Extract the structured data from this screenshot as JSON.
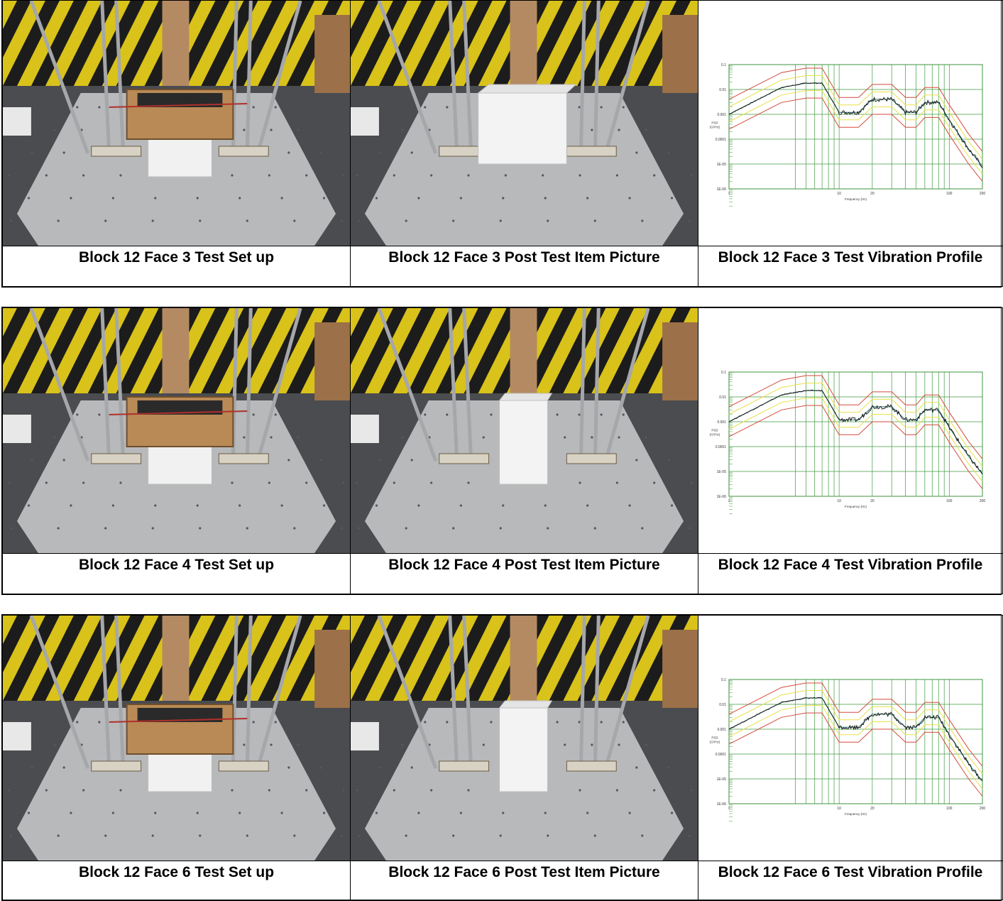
{
  "rows": [
    {
      "setup_caption": "Block 12 Face 3 Test Set up",
      "post_caption": "Block 12 Face 3 Post Test Item Picture",
      "profile_caption": "Block 12 Face 3 Test Vibration Profile",
      "post_box_variant": "wide"
    },
    {
      "setup_caption": "Block 12 Face 4 Test Set up",
      "post_caption": "Block 12 Face 4 Post Test Item Picture",
      "profile_caption": "Block 12 Face 4 Test Vibration Profile",
      "post_box_variant": "tall"
    },
    {
      "setup_caption": "Block 12 Face 6 Test Set up",
      "post_caption": "Block 12 Face 6 Post Test Item Picture",
      "profile_caption": "Block 12 Face 6 Test Vibration Profile",
      "post_box_variant": "tall"
    }
  ],
  "chart_text": {
    "y_tick_labels": [
      "0.1",
      "0.01",
      "0.001",
      "0.0001",
      "1E-05",
      "1E-06"
    ],
    "y_axis_label_line1": "PSD",
    "y_axis_label_line2": "(G²/Hz)",
    "x_tick_labels": [
      "1",
      "10",
      "20",
      "100",
      "200"
    ],
    "x_axis_label": "Frequency (Hz)"
  },
  "chart_data": [
    {
      "type": "line",
      "xscale": "log",
      "yscale": "log",
      "xlim": [
        1,
        200
      ],
      "ylim": [
        1e-06,
        0.1
      ],
      "xlabel": "Frequency (Hz)",
      "ylabel": "PSD (G²/Hz)",
      "grid": true,
      "x": [
        1,
        3,
        5,
        7,
        10,
        15,
        20,
        30,
        40,
        50,
        60,
        70,
        80,
        100,
        150,
        200
      ],
      "series": [
        {
          "values": [
            0.001,
            0.012,
            0.018,
            0.018,
            0.0012,
            0.0012,
            0.004,
            0.004,
            0.0012,
            0.0012,
            0.003,
            0.003,
            0.003,
            0.0006,
            4e-05,
            8e-06
          ]
        }
      ]
    },
    {
      "type": "line",
      "xscale": "log",
      "yscale": "log",
      "xlim": [
        1,
        200
      ],
      "ylim": [
        1e-06,
        0.1
      ],
      "xlabel": "Frequency (Hz)",
      "ylabel": "PSD (G²/Hz)",
      "grid": true,
      "x": [
        1,
        3,
        5,
        7,
        10,
        15,
        20,
        30,
        40,
        50,
        60,
        70,
        80,
        100,
        150,
        200
      ],
      "series": [
        {
          "values": [
            0.001,
            0.012,
            0.018,
            0.018,
            0.0012,
            0.0012,
            0.004,
            0.004,
            0.0012,
            0.0012,
            0.003,
            0.003,
            0.003,
            0.0006,
            4e-05,
            8e-06
          ]
        }
      ]
    },
    {
      "type": "line",
      "xscale": "log",
      "yscale": "log",
      "xlim": [
        1,
        200
      ],
      "ylim": [
        1e-06,
        0.1
      ],
      "xlabel": "Frequency (Hz)",
      "ylabel": "PSD (G²/Hz)",
      "grid": true,
      "x": [
        1,
        3,
        5,
        7,
        10,
        15,
        20,
        30,
        40,
        50,
        60,
        70,
        80,
        100,
        150,
        200
      ],
      "series": [
        {
          "values": [
            0.001,
            0.012,
            0.018,
            0.018,
            0.0012,
            0.0012,
            0.004,
            0.004,
            0.0012,
            0.0012,
            0.003,
            0.003,
            0.003,
            0.0006,
            4e-05,
            8e-06
          ]
        }
      ]
    }
  ]
}
